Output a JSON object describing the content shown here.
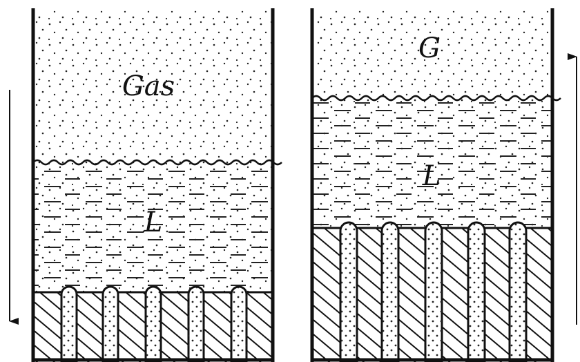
{
  "panels": [
    {
      "gas_label": "Gas",
      "liquid_label": "L"
    },
    {
      "gas_label": "G",
      "liquid_label": "L"
    }
  ]
}
